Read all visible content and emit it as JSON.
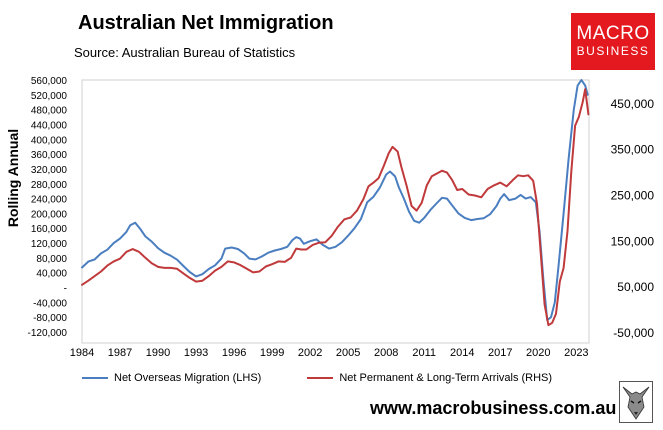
{
  "header": {
    "title": "Australian Net Immigration",
    "source": "Source: Australian Bureau of Statistics"
  },
  "brand": {
    "logo_line1": "MACRO",
    "logo_line2": "BUSINESS",
    "website": "www.macrobusiness.com.au",
    "logo_color": "#e3191f"
  },
  "chart_data": {
    "type": "line",
    "ylabel": "Rolling Annual",
    "x_ticks": [
      "1984",
      "1987",
      "1990",
      "1993",
      "1996",
      "1999",
      "2002",
      "2005",
      "2008",
      "2011",
      "2014",
      "2017",
      "2020",
      "2023"
    ],
    "y_left_ticks": [
      "560,000",
      "520,000",
      "480,000",
      "440,000",
      "400,000",
      "360,000",
      "320,000",
      "280,000",
      "240,000",
      "200,000",
      "160,000",
      "120,000",
      "80,000",
      "40,000",
      "-",
      "-40,000",
      "-80,000",
      "-120,000"
    ],
    "y_right_ticks": [
      "450,000",
      "350,000",
      "250,000",
      "150,000",
      "50,000",
      "-50,000"
    ],
    "ylim_left": [
      -120000,
      560000
    ],
    "ylim_right": [
      -50000,
      500000
    ],
    "xlim": [
      1984,
      2024
    ],
    "grid": false,
    "legend_position": "bottom",
    "series": [
      {
        "name": "Net Overseas Migration (LHS)",
        "axis": "left",
        "color": "#4a7ec0",
        "points": [
          [
            1984.0,
            54000
          ],
          [
            1984.5,
            70000
          ],
          [
            1985.0,
            76000
          ],
          [
            1985.5,
            92000
          ],
          [
            1986.0,
            102000
          ],
          [
            1986.5,
            120000
          ],
          [
            1987.0,
            132000
          ],
          [
            1987.5,
            150000
          ],
          [
            1987.8,
            168000
          ],
          [
            1988.2,
            175000
          ],
          [
            1988.6,
            158000
          ],
          [
            1989.0,
            138000
          ],
          [
            1989.5,
            124000
          ],
          [
            1990.0,
            106000
          ],
          [
            1990.5,
            94000
          ],
          [
            1991.0,
            86000
          ],
          [
            1991.5,
            75000
          ],
          [
            1992.0,
            58000
          ],
          [
            1992.5,
            42000
          ],
          [
            1993.0,
            30000
          ],
          [
            1993.5,
            36000
          ],
          [
            1994.0,
            50000
          ],
          [
            1994.5,
            60000
          ],
          [
            1995.0,
            78000
          ],
          [
            1995.3,
            105000
          ],
          [
            1995.8,
            108000
          ],
          [
            1996.3,
            104000
          ],
          [
            1996.8,
            92000
          ],
          [
            1997.2,
            78000
          ],
          [
            1997.7,
            76000
          ],
          [
            1998.2,
            84000
          ],
          [
            1998.7,
            94000
          ],
          [
            1999.2,
            100000
          ],
          [
            1999.7,
            104000
          ],
          [
            2000.2,
            110000
          ],
          [
            2000.6,
            128000
          ],
          [
            2000.9,
            136000
          ],
          [
            2001.2,
            132000
          ],
          [
            2001.5,
            118000
          ],
          [
            2002.0,
            125000
          ],
          [
            2002.5,
            130000
          ],
          [
            2003.0,
            115000
          ],
          [
            2003.5,
            105000
          ],
          [
            2004.0,
            110000
          ],
          [
            2004.5,
            122000
          ],
          [
            2005.0,
            140000
          ],
          [
            2005.5,
            160000
          ],
          [
            2006.0,
            185000
          ],
          [
            2006.5,
            230000
          ],
          [
            2007.0,
            245000
          ],
          [
            2007.5,
            270000
          ],
          [
            2008.0,
            305000
          ],
          [
            2008.3,
            313000
          ],
          [
            2008.7,
            300000
          ],
          [
            2009.0,
            270000
          ],
          [
            2009.4,
            240000
          ],
          [
            2009.8,
            205000
          ],
          [
            2010.2,
            180000
          ],
          [
            2010.6,
            175000
          ],
          [
            2011.0,
            188000
          ],
          [
            2011.5,
            210000
          ],
          [
            2012.0,
            228000
          ],
          [
            2012.4,
            242000
          ],
          [
            2012.8,
            240000
          ],
          [
            2013.2,
            222000
          ],
          [
            2013.7,
            200000
          ],
          [
            2014.2,
            188000
          ],
          [
            2014.7,
            182000
          ],
          [
            2015.2,
            185000
          ],
          [
            2015.7,
            187000
          ],
          [
            2016.2,
            198000
          ],
          [
            2016.7,
            220000
          ],
          [
            2017.0,
            240000
          ],
          [
            2017.3,
            252000
          ],
          [
            2017.7,
            236000
          ],
          [
            2018.2,
            240000
          ],
          [
            2018.6,
            250000
          ],
          [
            2019.0,
            240000
          ],
          [
            2019.4,
            244000
          ],
          [
            2019.8,
            230000
          ],
          [
            2020.1,
            150000
          ],
          [
            2020.4,
            20000
          ],
          [
            2020.7,
            -88000
          ],
          [
            2021.0,
            -80000
          ],
          [
            2021.3,
            -40000
          ],
          [
            2021.6,
            60000
          ],
          [
            2022.0,
            200000
          ],
          [
            2022.4,
            350000
          ],
          [
            2022.8,
            480000
          ],
          [
            2023.1,
            545000
          ],
          [
            2023.4,
            560000
          ],
          [
            2023.7,
            545000
          ],
          [
            2023.9,
            520000
          ]
        ]
      },
      {
        "name": "Net Permanent & Long-Term Arrivals (RHS)",
        "axis": "right",
        "color": "#c0393b",
        "points": [
          [
            1984.0,
            53000
          ],
          [
            1984.5,
            62000
          ],
          [
            1985.0,
            72000
          ],
          [
            1985.5,
            82000
          ],
          [
            1986.0,
            95000
          ],
          [
            1986.5,
            104000
          ],
          [
            1987.0,
            110000
          ],
          [
            1987.5,
            125000
          ],
          [
            1988.0,
            131000
          ],
          [
            1988.5,
            125000
          ],
          [
            1989.0,
            112000
          ],
          [
            1989.5,
            100000
          ],
          [
            1990.0,
            92000
          ],
          [
            1990.5,
            90000
          ],
          [
            1991.0,
            90000
          ],
          [
            1991.5,
            88000
          ],
          [
            1992.0,
            78000
          ],
          [
            1992.5,
            68000
          ],
          [
            1993.0,
            60000
          ],
          [
            1993.5,
            62000
          ],
          [
            1994.0,
            72000
          ],
          [
            1994.5,
            84000
          ],
          [
            1995.0,
            92000
          ],
          [
            1995.5,
            104000
          ],
          [
            1996.0,
            102000
          ],
          [
            1996.5,
            96000
          ],
          [
            1997.0,
            88000
          ],
          [
            1997.5,
            80000
          ],
          [
            1998.0,
            82000
          ],
          [
            1998.5,
            93000
          ],
          [
            1999.0,
            98000
          ],
          [
            1999.5,
            104000
          ],
          [
            2000.0,
            103000
          ],
          [
            2000.5,
            112000
          ],
          [
            2000.9,
            132000
          ],
          [
            2001.3,
            130000
          ],
          [
            2001.7,
            130000
          ],
          [
            2002.2,
            140000
          ],
          [
            2002.7,
            145000
          ],
          [
            2003.2,
            146000
          ],
          [
            2003.7,
            160000
          ],
          [
            2004.2,
            180000
          ],
          [
            2004.7,
            196000
          ],
          [
            2005.2,
            200000
          ],
          [
            2005.7,
            215000
          ],
          [
            2006.2,
            240000
          ],
          [
            2006.6,
            268000
          ],
          [
            2007.0,
            276000
          ],
          [
            2007.4,
            286000
          ],
          [
            2007.8,
            312000
          ],
          [
            2008.2,
            340000
          ],
          [
            2008.5,
            354000
          ],
          [
            2008.9,
            344000
          ],
          [
            2009.2,
            310000
          ],
          [
            2009.6,
            270000
          ],
          [
            2010.0,
            225000
          ],
          [
            2010.4,
            215000
          ],
          [
            2010.8,
            232000
          ],
          [
            2011.2,
            270000
          ],
          [
            2011.6,
            290000
          ],
          [
            2012.0,
            296000
          ],
          [
            2012.4,
            302000
          ],
          [
            2012.8,
            298000
          ],
          [
            2013.2,
            282000
          ],
          [
            2013.6,
            260000
          ],
          [
            2014.0,
            262000
          ],
          [
            2014.5,
            250000
          ],
          [
            2015.0,
            248000
          ],
          [
            2015.5,
            244000
          ],
          [
            2016.0,
            262000
          ],
          [
            2016.5,
            270000
          ],
          [
            2017.0,
            276000
          ],
          [
            2017.5,
            268000
          ],
          [
            2018.0,
            282000
          ],
          [
            2018.4,
            292000
          ],
          [
            2018.8,
            290000
          ],
          [
            2019.2,
            292000
          ],
          [
            2019.6,
            280000
          ],
          [
            2019.9,
            230000
          ],
          [
            2020.2,
            120000
          ],
          [
            2020.5,
            10000
          ],
          [
            2020.8,
            -35000
          ],
          [
            2021.1,
            -30000
          ],
          [
            2021.4,
            -10000
          ],
          [
            2021.7,
            60000
          ],
          [
            2022.0,
            90000
          ],
          [
            2022.3,
            170000
          ],
          [
            2022.6,
            300000
          ],
          [
            2022.9,
            400000
          ],
          [
            2023.2,
            420000
          ],
          [
            2023.5,
            452000
          ],
          [
            2023.7,
            480000
          ],
          [
            2023.95,
            425000
          ]
        ]
      }
    ]
  }
}
